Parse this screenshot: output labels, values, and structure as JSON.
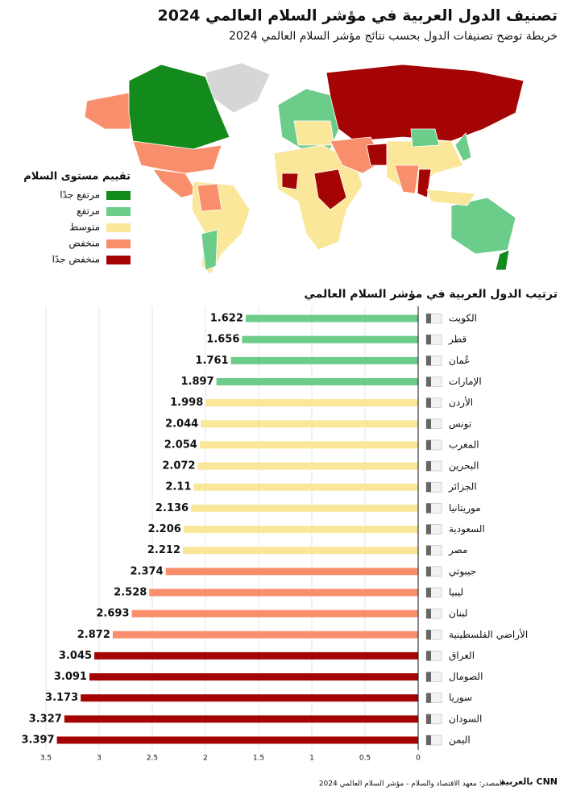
{
  "header": {
    "title": "تصنيف الدول العربية في مؤشر السلام العالمي 2024",
    "subtitle": "خريطة توضح تصنيفات الدول بحسب نتائج مؤشر السلام العالمي 2024"
  },
  "map_legend": {
    "title": "تقييم مستوى السلام",
    "items": [
      {
        "label": "مرتفع جدًا",
        "color": "#128a1c"
      },
      {
        "label": "مرتفع",
        "color": "#6ccc8a"
      },
      {
        "label": "متوسط",
        "color": "#fbe79a"
      },
      {
        "label": "منخفض",
        "color": "#f98e6c"
      },
      {
        "label": "منخفض جدًا",
        "color": "#a50404"
      }
    ]
  },
  "chart_data": {
    "type": "bar",
    "orientation": "horizontal",
    "title": "ترتيب الدول العربية في مؤشر السلام العالمي",
    "categories": [
      "الكويت",
      "قطر",
      "عُمان",
      "الإمارات",
      "الأردن",
      "تونس",
      "المغرب",
      "البحرين",
      "الجزائر",
      "موريتانيا",
      "السعودية",
      "مصر",
      "جيبوتي",
      "ليبيا",
      "لبنان",
      "الأراضي الفلسطينية",
      "العراق",
      "الصومال",
      "سوريا",
      "السودان",
      "اليمن"
    ],
    "values": [
      1.622,
      1.656,
      1.761,
      1.897,
      1.998,
      2.044,
      2.054,
      2.072,
      2.11,
      2.136,
      2.206,
      2.212,
      2.374,
      2.528,
      2.693,
      2.872,
      3.045,
      3.091,
      3.173,
      3.327,
      3.397
    ],
    "colors": [
      "#6ccc8a",
      "#6ccc8a",
      "#6ccc8a",
      "#6ccc8a",
      "#fbe79a",
      "#fbe79a",
      "#fbe79a",
      "#fbe79a",
      "#fbe79a",
      "#fbe79a",
      "#fbe79a",
      "#fbe79a",
      "#f98e6c",
      "#f98e6c",
      "#f98e6c",
      "#f98e6c",
      "#a50404",
      "#a50404",
      "#a50404",
      "#a50404",
      "#a50404"
    ],
    "xlim": [
      0,
      3.5
    ],
    "xticks": [
      0,
      0.5,
      1,
      1.5,
      2,
      2.5,
      3,
      3.5
    ],
    "x_reversed": true,
    "grid": true
  },
  "footer": {
    "source": "المصدر: معهد الاقتصاد والسلام - مؤشر السلام العالمي 2024",
    "logo": "CNN بالعربية"
  }
}
